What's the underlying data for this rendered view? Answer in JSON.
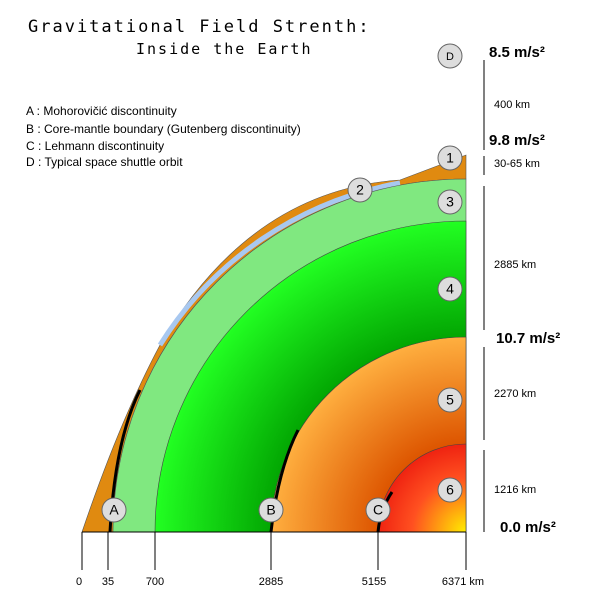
{
  "header": {
    "title": "Gravitational Field Strenth:",
    "subtitle": "Inside the Earth"
  },
  "legend": [
    "A : Mohorovičić discontinuity",
    "B : Core-mantle boundary (Gutenberg discontinuity)",
    "C : Lehmann discontinuity",
    "D : Typical space shuttle orbit"
  ],
  "markers": {
    "layers": [
      "1",
      "2",
      "3",
      "4",
      "5",
      "6"
    ],
    "boundaries": [
      "A",
      "B",
      "C",
      "D"
    ]
  },
  "x_labels": [
    "0",
    "35",
    "700",
    "2885",
    "5155",
    "6371 km"
  ],
  "thickness_labels": [
    "400 km",
    "30-65 km",
    "2885 km",
    "2270 km",
    "1216 km"
  ],
  "gravity_labels": [
    "8.5 m/s²",
    "9.8 m/s²",
    "10.7 m/s²",
    "0.0 m/s²"
  ]
}
